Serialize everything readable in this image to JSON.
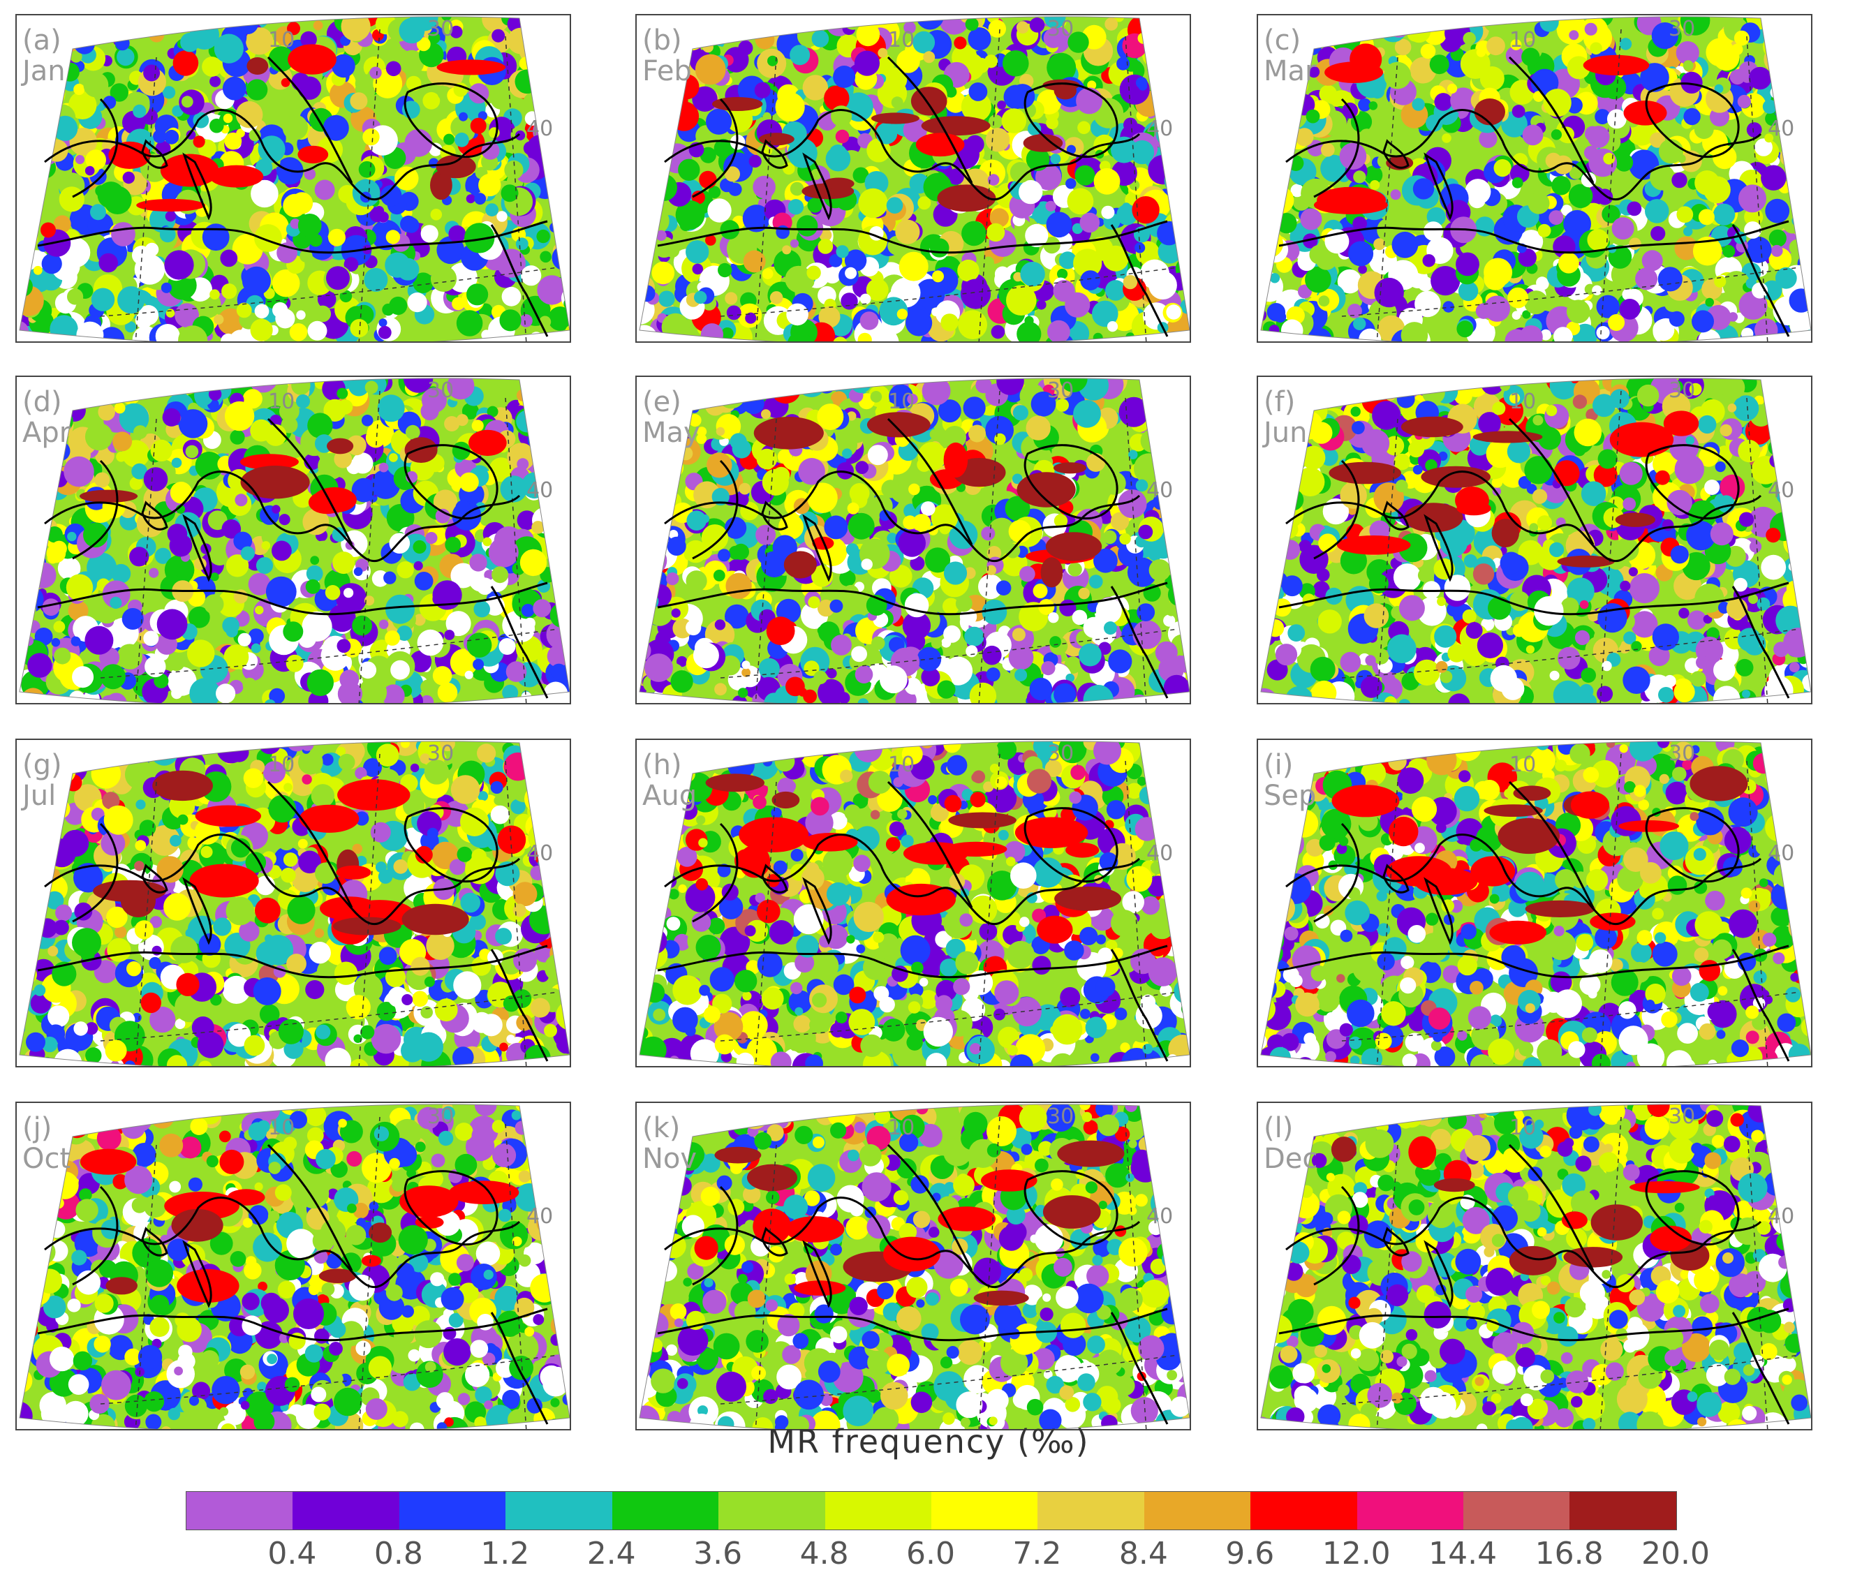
{
  "figure": {
    "colorbar_title": "MR frequency (‰)",
    "colorbar_colors": [
      "#b25ad8",
      "#7000d8",
      "#1f3cff",
      "#20c0c0",
      "#10c810",
      "#98e028",
      "#d8f800",
      "#ffff00",
      "#e8d040",
      "#e8a828",
      "#ff0000",
      "#f0107c",
      "#c85a5a",
      "#a01c1c"
    ],
    "colorbar_ticks": [
      "0.4",
      "0.8",
      "1.2",
      "2.4",
      "3.6",
      "4.8",
      "6.0",
      "7.2",
      "8.4",
      "9.6",
      "12.0",
      "14.4",
      "16.8",
      "20.0"
    ],
    "lon_labels": [
      "10",
      "30"
    ],
    "lat_label": "40",
    "panels": [
      {
        "letter": "(a)",
        "month": "Jan"
      },
      {
        "letter": "(b)",
        "month": "Feb"
      },
      {
        "letter": "(c)",
        "month": "Mar"
      },
      {
        "letter": "(d)",
        "month": "Apr"
      },
      {
        "letter": "(e)",
        "month": "May"
      },
      {
        "letter": "(f)",
        "month": "Jun"
      },
      {
        "letter": "(g)",
        "month": "Jul"
      },
      {
        "letter": "(h)",
        "month": "Aug"
      },
      {
        "letter": "(i)",
        "month": "Sep"
      },
      {
        "letter": "(j)",
        "month": "Oct"
      },
      {
        "letter": "(k)",
        "month": "Nov"
      },
      {
        "letter": "(l)",
        "month": "Dec"
      }
    ]
  }
}
